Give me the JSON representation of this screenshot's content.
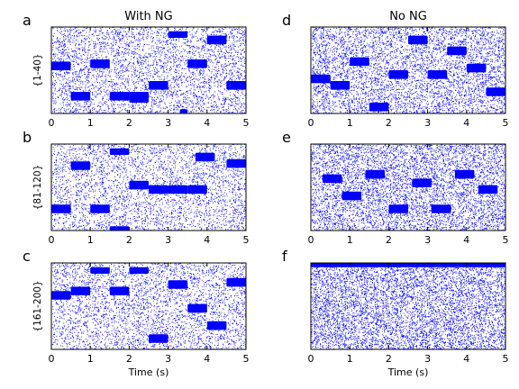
{
  "colors": {
    "spikes": "#0000ff",
    "axes": "#000000",
    "background": "#ffffff"
  },
  "columns": [
    {
      "title": "With NG"
    },
    {
      "title": "No NG"
    }
  ],
  "chart_data": [
    {
      "type": "scatter",
      "panel": "a",
      "column": 0,
      "row": 0,
      "title": "",
      "xlabel": "",
      "ylabel": "{1-40}",
      "xlim": [
        0,
        5
      ],
      "xticks": [
        0,
        1,
        2,
        3,
        4,
        5
      ],
      "ylim": [
        0,
        40
      ],
      "yticks": [],
      "density": 0.55,
      "bar_period": 0.5,
      "persistent_bands": [
        {
          "x": [
            0.0,
            0.5
          ],
          "y": [
            20,
            24
          ]
        },
        {
          "x": [
            0.5,
            1.0
          ],
          "y": [
            6,
            10
          ]
        },
        {
          "x": [
            1.0,
            1.5
          ],
          "y": [
            21,
            25
          ]
        },
        {
          "x": [
            1.5,
            2.0
          ],
          "y": [
            6,
            10
          ]
        },
        {
          "x": [
            2.0,
            2.5
          ],
          "y": [
            5,
            10
          ]
        },
        {
          "x": [
            2.5,
            3.0
          ],
          "y": [
            11,
            15
          ]
        },
        {
          "x": [
            3.0,
            3.5
          ],
          "y": [
            35,
            38
          ]
        },
        {
          "x": [
            3.3,
            3.5
          ],
          "y": [
            0,
            2
          ]
        },
        {
          "x": [
            3.5,
            4.0
          ],
          "y": [
            21,
            25
          ]
        },
        {
          "x": [
            4.0,
            4.5
          ],
          "y": [
            32,
            36
          ]
        },
        {
          "x": [
            4.5,
            5.0
          ],
          "y": [
            11,
            15
          ]
        }
      ]
    },
    {
      "type": "scatter",
      "panel": "b",
      "column": 0,
      "row": 1,
      "title": "",
      "xlabel": "",
      "ylabel": "{81-120}",
      "xlim": [
        0,
        5
      ],
      "xticks": [
        0,
        1,
        2,
        3,
        4,
        5
      ],
      "ylim": [
        0,
        40
      ],
      "yticks": [],
      "density": 0.45,
      "bar_period": 0.5,
      "persistent_bands": [
        {
          "x": [
            0.0,
            0.5
          ],
          "y": [
            8,
            12
          ]
        },
        {
          "x": [
            0.5,
            1.0
          ],
          "y": [
            28,
            32
          ]
        },
        {
          "x": [
            1.0,
            1.5
          ],
          "y": [
            8,
            12
          ]
        },
        {
          "x": [
            1.5,
            2.0
          ],
          "y": [
            35,
            38
          ]
        },
        {
          "x": [
            1.5,
            2.0
          ],
          "y": [
            0,
            2
          ]
        },
        {
          "x": [
            2.0,
            2.5
          ],
          "y": [
            19,
            23
          ]
        },
        {
          "x": [
            2.5,
            3.0
          ],
          "y": [
            17,
            21
          ]
        },
        {
          "x": [
            3.0,
            3.5
          ],
          "y": [
            17,
            21
          ]
        },
        {
          "x": [
            3.5,
            4.0
          ],
          "y": [
            17,
            21
          ]
        },
        {
          "x": [
            3.7,
            4.2
          ],
          "y": [
            32,
            36
          ]
        },
        {
          "x": [
            4.5,
            5.0
          ],
          "y": [
            29,
            33
          ]
        }
      ]
    },
    {
      "type": "scatter",
      "panel": "c",
      "column": 0,
      "row": 2,
      "title": "",
      "xlabel": "Time (s)",
      "ylabel": "{161-200}",
      "xlim": [
        0,
        5
      ],
      "xticks": [
        0,
        1,
        2,
        3,
        4,
        5
      ],
      "ylim": [
        0,
        40
      ],
      "yticks": [],
      "density": 0.5,
      "bar_period": 0.5,
      "persistent_bands": [
        {
          "x": [
            0.0,
            0.5
          ],
          "y": [
            23,
            27
          ]
        },
        {
          "x": [
            0.5,
            1.0
          ],
          "y": [
            25,
            29
          ]
        },
        {
          "x": [
            1.0,
            1.5
          ],
          "y": [
            35,
            38
          ]
        },
        {
          "x": [
            1.5,
            2.0
          ],
          "y": [
            25,
            29
          ]
        },
        {
          "x": [
            2.0,
            2.5
          ],
          "y": [
            35,
            38
          ]
        },
        {
          "x": [
            2.5,
            3.0
          ],
          "y": [
            3,
            7
          ]
        },
        {
          "x": [
            3.0,
            3.5
          ],
          "y": [
            28,
            32
          ]
        },
        {
          "x": [
            3.5,
            4.0
          ],
          "y": [
            17,
            21
          ]
        },
        {
          "x": [
            4.0,
            4.5
          ],
          "y": [
            9,
            13
          ]
        },
        {
          "x": [
            4.5,
            5.0
          ],
          "y": [
            29,
            33
          ]
        }
      ]
    },
    {
      "type": "scatter",
      "panel": "d",
      "column": 1,
      "row": 0,
      "title": "",
      "xlabel": "",
      "ylabel": "",
      "xlim": [
        0,
        5
      ],
      "xticks": [
        0,
        1,
        2,
        3,
        4,
        5
      ],
      "ylim": [
        0,
        40
      ],
      "yticks": [],
      "density": 0.75,
      "bar_period": 0.5,
      "persistent_bands": [
        {
          "x": [
            0.0,
            0.5
          ],
          "y": [
            14,
            18
          ]
        },
        {
          "x": [
            0.5,
            1.0
          ],
          "y": [
            11,
            15
          ]
        },
        {
          "x": [
            1.0,
            1.5
          ],
          "y": [
            22,
            26
          ]
        },
        {
          "x": [
            1.5,
            2.0
          ],
          "y": [
            1,
            5
          ]
        },
        {
          "x": [
            2.0,
            2.5
          ],
          "y": [
            16,
            20
          ]
        },
        {
          "x": [
            2.5,
            3.0
          ],
          "y": [
            32,
            36
          ]
        },
        {
          "x": [
            3.0,
            3.5
          ],
          "y": [
            16,
            20
          ]
        },
        {
          "x": [
            3.5,
            4.0
          ],
          "y": [
            27,
            31
          ]
        },
        {
          "x": [
            4.0,
            4.5
          ],
          "y": [
            19,
            23
          ]
        },
        {
          "x": [
            4.5,
            5.0
          ],
          "y": [
            8,
            12
          ]
        }
      ]
    },
    {
      "type": "scatter",
      "panel": "e",
      "column": 1,
      "row": 1,
      "title": "",
      "xlabel": "",
      "ylabel": "",
      "xlim": [
        0,
        5
      ],
      "xticks": [
        0,
        1,
        2,
        3,
        4,
        5
      ],
      "ylim": [
        0,
        40
      ],
      "yticks": [],
      "density": 0.85,
      "bar_period": 0.25,
      "persistent_bands": [
        {
          "x": [
            0.3,
            0.8
          ],
          "y": [
            22,
            26
          ]
        },
        {
          "x": [
            0.8,
            1.3
          ],
          "y": [
            14,
            18
          ]
        },
        {
          "x": [
            1.4,
            1.9
          ],
          "y": [
            24,
            28
          ]
        },
        {
          "x": [
            2.0,
            2.5
          ],
          "y": [
            8,
            12
          ]
        },
        {
          "x": [
            2.6,
            3.1
          ],
          "y": [
            20,
            24
          ]
        },
        {
          "x": [
            3.1,
            3.6
          ],
          "y": [
            8,
            12
          ]
        },
        {
          "x": [
            3.7,
            4.2
          ],
          "y": [
            24,
            28
          ]
        },
        {
          "x": [
            4.3,
            4.8
          ],
          "y": [
            17,
            21
          ]
        }
      ]
    },
    {
      "type": "scatter",
      "panel": "f",
      "column": 1,
      "row": 2,
      "title": "",
      "xlabel": "Time (s)",
      "ylabel": "",
      "xlim": [
        0,
        5
      ],
      "xticks": [
        0,
        1,
        2,
        3,
        4,
        5
      ],
      "ylim": [
        0,
        40
      ],
      "yticks": [],
      "density": 0.95,
      "bar_period": 0.25,
      "persistent_bands": [
        {
          "x": [
            0.0,
            5.0
          ],
          "y": [
            38,
            40
          ]
        }
      ]
    }
  ]
}
